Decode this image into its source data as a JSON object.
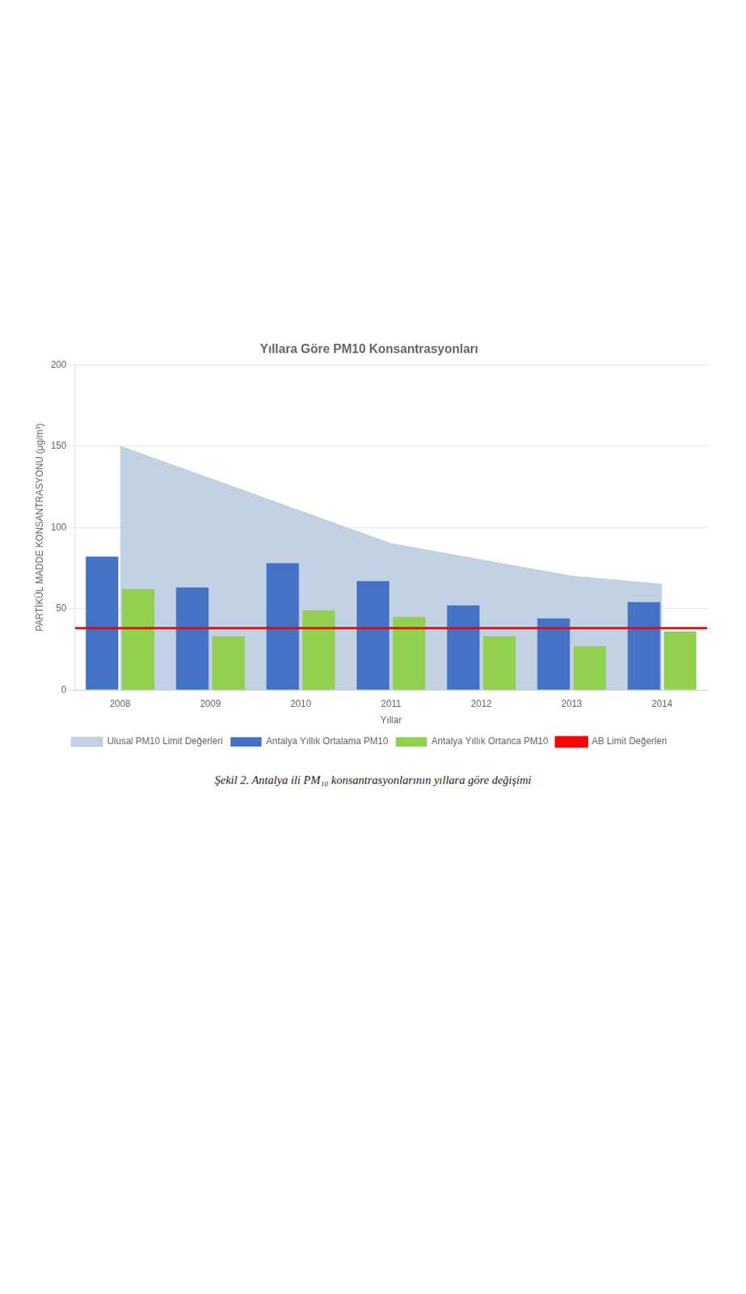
{
  "chart_data": {
    "type": "bar",
    "title": "Yıllara Göre PM10 Konsantrasyonları",
    "caption": "Şekil 2. Antalya ili PM₁₀ konsantrasyonlarının yıllara göre değişimi",
    "xlabel": "Yıllar",
    "ylabel": "PARTİKÜL MADDE KONSANTRASYONU (μg/m³)",
    "categories": [
      "2008",
      "2009",
      "2010",
      "2011",
      "2012",
      "2013",
      "2014"
    ],
    "series": [
      {
        "name": "Ulusal PM10 Limit Değerleri",
        "type": "area",
        "color": "#B8C9E0",
        "values": [
          150,
          130,
          110,
          90,
          80,
          70,
          65
        ]
      },
      {
        "name": "Antalya Yıllık Ortalama PM10",
        "type": "bar",
        "color": "#4472C4",
        "values": [
          82,
          63,
          78,
          67,
          52,
          44,
          54
        ]
      },
      {
        "name": "Antalya Yıllık Ortanca PM10",
        "type": "bar",
        "color": "#92D050",
        "values": [
          62,
          33,
          49,
          45,
          33,
          27,
          36
        ]
      },
      {
        "name": "AB Limit Değerleri",
        "type": "hline",
        "color": "#FF0000",
        "value": 38
      }
    ],
    "ylim": [
      0,
      200
    ],
    "yticks": [
      0,
      50,
      100,
      150,
      200
    ],
    "grid": true,
    "legend": "bottom"
  }
}
